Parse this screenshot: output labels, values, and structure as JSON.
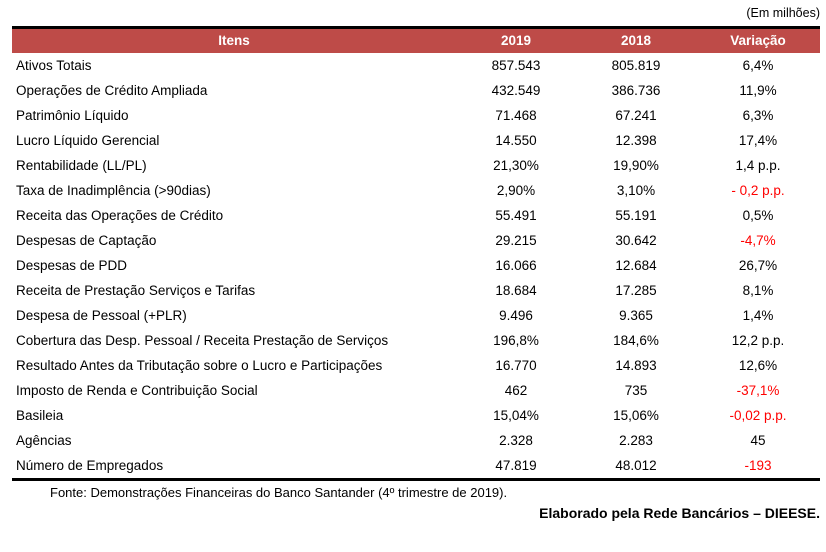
{
  "unit_note": "(Em milhões)",
  "colors": {
    "header_bg": "#BE4B48",
    "header_fg": "#FFFFFF",
    "negative": "#FF0000",
    "rule": "#000000"
  },
  "table": {
    "headers": {
      "itens": "Itens",
      "y2019": "2019",
      "y2018": "2018",
      "variacao": "Variação"
    },
    "rows": [
      {
        "label": "Ativos Totais",
        "v2019": "857.543",
        "v2018": "805.819",
        "variacao": "6,4%",
        "negative": false
      },
      {
        "label": "Operações de Crédito Ampliada",
        "v2019": "432.549",
        "v2018": "386.736",
        "variacao": "11,9%",
        "negative": false
      },
      {
        "label": "Patrimônio Líquido",
        "v2019": "71.468",
        "v2018": "67.241",
        "variacao": "6,3%",
        "negative": false
      },
      {
        "label": "Lucro Líquido Gerencial",
        "v2019": "14.550",
        "v2018": "12.398",
        "variacao": "17,4%",
        "negative": false
      },
      {
        "label": "Rentabilidade (LL/PL)",
        "v2019": "21,30%",
        "v2018": "19,90%",
        "variacao": "1,4 p.p.",
        "negative": false
      },
      {
        "label": "Taxa de Inadimplência (>90dias)",
        "v2019": "2,90%",
        "v2018": "3,10%",
        "variacao": "- 0,2 p.p.",
        "negative": true
      },
      {
        "label": "Receita das Operações de Crédito",
        "v2019": "55.491",
        "v2018": "55.191",
        "variacao": "0,5%",
        "negative": false
      },
      {
        "label": "Despesas de Captação",
        "v2019": "29.215",
        "v2018": "30.642",
        "variacao": "-4,7%",
        "negative": true
      },
      {
        "label": "Despesas de PDD",
        "v2019": "16.066",
        "v2018": "12.684",
        "variacao": "26,7%",
        "negative": false
      },
      {
        "label": "Receita de Prestação Serviços e Tarifas",
        "v2019": "18.684",
        "v2018": "17.285",
        "variacao": "8,1%",
        "negative": false
      },
      {
        "label": "Despesa de Pessoal (+PLR)",
        "v2019": "9.496",
        "v2018": "9.365",
        "variacao": "1,4%",
        "negative": false
      },
      {
        "label": "Cobertura das Desp. Pessoal / Receita Prestação de Serviços",
        "v2019": "196,8%",
        "v2018": "184,6%",
        "variacao": "12,2 p.p.",
        "negative": false
      },
      {
        "label": "Resultado Antes da Tributação sobre o Lucro e Participações",
        "v2019": "16.770",
        "v2018": "14.893",
        "variacao": "12,6%",
        "negative": false
      },
      {
        "label": "Imposto de Renda e Contribuição Social",
        "v2019": "462",
        "v2018": "735",
        "variacao": "-37,1%",
        "negative": true
      },
      {
        "label": "Basileia",
        "v2019": "15,04%",
        "v2018": "15,06%",
        "variacao": "-0,02 p.p.",
        "negative": true
      },
      {
        "label": "Agências",
        "v2019": "2.328",
        "v2018": "2.283",
        "variacao": "45",
        "negative": false
      },
      {
        "label": "Número de Empregados",
        "v2019": "47.819",
        "v2018": "48.012",
        "variacao": "-193",
        "negative": true
      }
    ]
  },
  "footer": {
    "source": "Fonte: Demonstrações Financeiras do Banco Santander (4º trimestre de 2019).",
    "credit": "Elaborado pela Rede Bancários – DIEESE."
  }
}
